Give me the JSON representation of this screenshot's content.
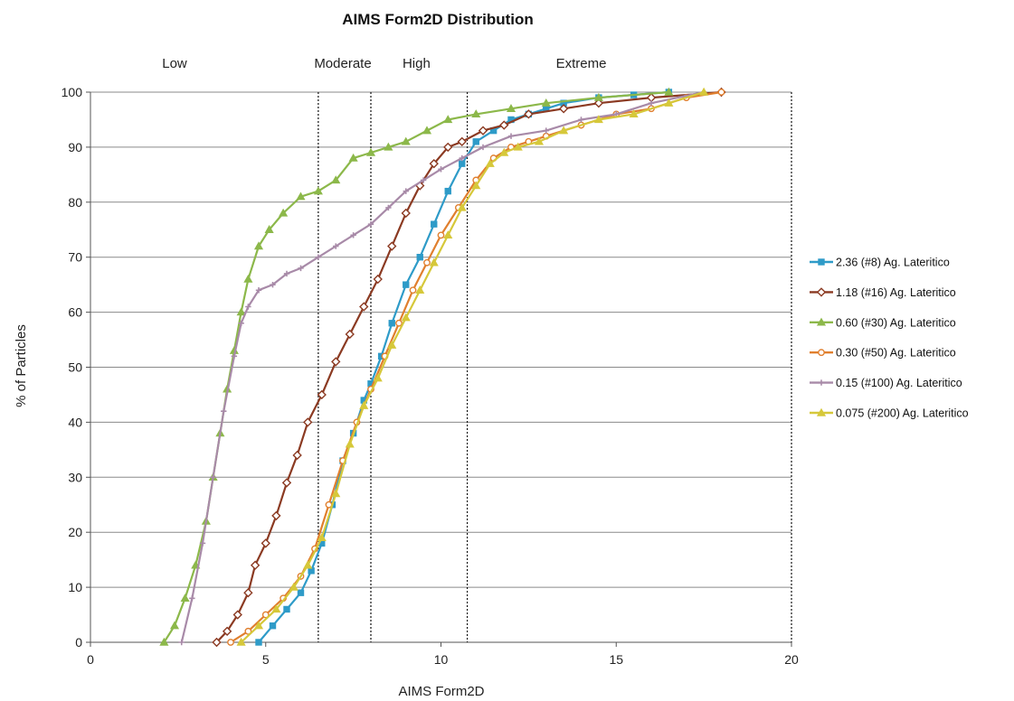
{
  "chart_data": {
    "type": "line",
    "title": "AIMS Form2D Distribution",
    "xlabel": "AIMS Form2D",
    "ylabel": "% of Particles",
    "xlim": [
      0,
      20
    ],
    "ylim": [
      0,
      100
    ],
    "x_ticks": [
      0,
      5,
      10,
      15,
      20
    ],
    "y_ticks": [
      0,
      10,
      20,
      30,
      40,
      50,
      60,
      70,
      80,
      90,
      100
    ],
    "grid": "horizontal",
    "legend_position": "right",
    "zones": [
      {
        "label": "Low",
        "label_x": 2.4
      },
      {
        "label": "Moderate",
        "label_x": 7.2
      },
      {
        "label": "High",
        "label_x": 9.3
      },
      {
        "label": "Extreme",
        "label_x": 14.0
      }
    ],
    "thresholds": [
      6.5,
      8.0,
      10.75,
      20
    ],
    "series": [
      {
        "name": "2.36 (#8) Ag. Lateritico",
        "color": "#2e9bc8",
        "marker": "square",
        "x": [
          4.8,
          5.2,
          5.6,
          6.0,
          6.3,
          6.6,
          6.9,
          7.2,
          7.5,
          7.8,
          8.0,
          8.3,
          8.6,
          9.0,
          9.4,
          9.8,
          10.2,
          10.6,
          11.0,
          11.5,
          12.0,
          12.5,
          13.0,
          13.5,
          14.5,
          15.5,
          16.5
        ],
        "y": [
          0,
          3,
          6,
          9,
          13,
          18,
          25,
          33,
          38,
          44,
          47,
          52,
          58,
          65,
          70,
          76,
          82,
          87,
          91,
          93,
          95,
          96,
          97,
          98,
          99,
          99.5,
          100
        ]
      },
      {
        "name": "1.18 (#16) Ag. Lateritico",
        "color": "#8b3a22",
        "marker": "diamond",
        "x": [
          3.6,
          3.9,
          4.2,
          4.5,
          4.7,
          5.0,
          5.3,
          5.6,
          5.9,
          6.2,
          6.6,
          7.0,
          7.4,
          7.8,
          8.2,
          8.6,
          9.0,
          9.4,
          9.8,
          10.2,
          10.6,
          11.2,
          11.8,
          12.5,
          13.5,
          14.5,
          16.0,
          18.0
        ],
        "y": [
          0,
          2,
          5,
          9,
          14,
          18,
          23,
          29,
          34,
          40,
          45,
          51,
          56,
          61,
          66,
          72,
          78,
          83,
          87,
          90,
          91,
          93,
          94,
          96,
          97,
          98,
          99,
          100
        ]
      },
      {
        "name": "0.60 (#30) Ag. Lateritico",
        "color": "#8cb84a",
        "marker": "triangle",
        "x": [
          2.1,
          2.4,
          2.7,
          3.0,
          3.3,
          3.5,
          3.7,
          3.9,
          4.1,
          4.3,
          4.5,
          4.8,
          5.1,
          5.5,
          6.0,
          6.5,
          7.0,
          7.5,
          8.0,
          8.5,
          9.0,
          9.6,
          10.2,
          11.0,
          12.0,
          13.0,
          14.5,
          16.5
        ],
        "y": [
          0,
          3,
          8,
          14,
          22,
          30,
          38,
          46,
          53,
          60,
          66,
          72,
          75,
          78,
          81,
          82,
          84,
          88,
          89,
          90,
          91,
          93,
          95,
          96,
          97,
          98,
          99,
          100
        ]
      },
      {
        "name": "0.30 (#50) Ag. Lateritico",
        "color": "#e07f2e",
        "marker": "circle",
        "x": [
          4.0,
          4.5,
          5.0,
          5.5,
          6.0,
          6.4,
          6.8,
          7.2,
          7.6,
          8.0,
          8.4,
          8.8,
          9.2,
          9.6,
          10.0,
          10.5,
          11.0,
          11.5,
          12.0,
          12.5,
          13.0,
          14.0,
          15.0,
          16.0,
          17.0,
          18.0
        ],
        "y": [
          0,
          2,
          5,
          8,
          12,
          17,
          25,
          33,
          40,
          46,
          52,
          58,
          64,
          69,
          74,
          79,
          84,
          88,
          90,
          91,
          92,
          94,
          96,
          97,
          99,
          100
        ]
      },
      {
        "name": "0.15 (#100) Ag. Lateritico",
        "color": "#a88aa8",
        "marker": "plus",
        "x": [
          2.6,
          2.9,
          3.2,
          3.5,
          3.8,
          4.1,
          4.3,
          4.5,
          4.8,
          5.2,
          5.6,
          6.0,
          6.5,
          7.0,
          7.5,
          8.0,
          8.5,
          9.0,
          9.5,
          10.0,
          10.6,
          11.2,
          12.0,
          13.0,
          14.0,
          15.0,
          16.0,
          17.5
        ],
        "y": [
          0,
          8,
          18,
          30,
          42,
          52,
          58,
          61,
          64,
          65,
          67,
          68,
          70,
          72,
          74,
          76,
          79,
          82,
          84,
          86,
          88,
          90,
          92,
          93,
          95,
          96,
          98,
          100
        ]
      },
      {
        "name": "0.075 (#200) Ag. Lateritico",
        "color": "#d6c83a",
        "marker": "triangle",
        "x": [
          4.3,
          4.8,
          5.3,
          5.8,
          6.2,
          6.6,
          7.0,
          7.4,
          7.8,
          8.2,
          8.6,
          9.0,
          9.4,
          9.8,
          10.2,
          10.6,
          11.0,
          11.4,
          11.8,
          12.2,
          12.8,
          13.5,
          14.5,
          15.5,
          16.5,
          17.5
        ],
        "y": [
          0,
          3,
          6,
          10,
          14,
          19,
          27,
          36,
          43,
          48,
          54,
          59,
          64,
          69,
          74,
          79,
          83,
          87,
          89,
          90,
          91,
          93,
          95,
          96,
          98,
          100
        ]
      }
    ]
  }
}
